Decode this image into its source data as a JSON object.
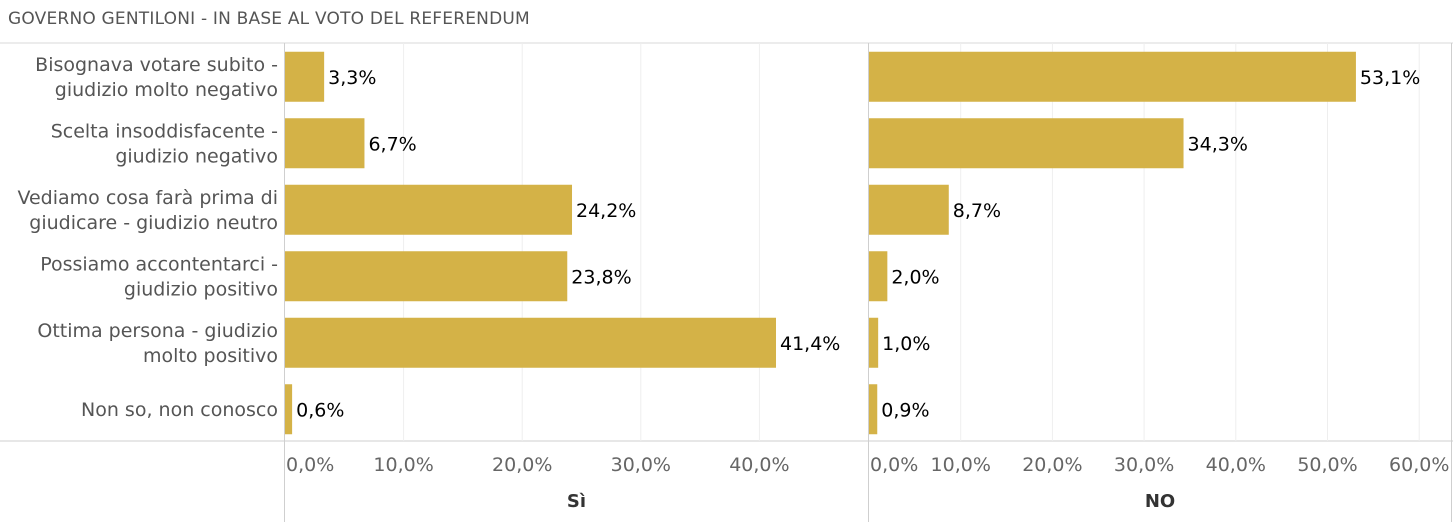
{
  "title": "GOVERNO GENTILONI - IN BASE AL VOTO DEL REFERENDUM",
  "chart_data": {
    "type": "bar",
    "orientation": "horizontal",
    "title": "GOVERNO GENTILONI - IN BASE AL VOTO DEL REFERENDUM",
    "bar_color": "#D4B247",
    "categories": [
      [
        "Bisognava votare subito -",
        "giudizio molto negativo"
      ],
      [
        "Scelta insoddisfacente -",
        "giudizio negativo"
      ],
      [
        "Vediamo cosa farà prima di",
        "giudicare - giudizio neutro"
      ],
      [
        "Possiamo accontentarci -",
        "giudizio positivo"
      ],
      [
        "Ottima persona - giudizio",
        "molto positivo"
      ],
      [
        "Non so, non conosco"
      ]
    ],
    "series": [
      {
        "name": "Sì",
        "values": [
          3.3,
          6.7,
          24.2,
          23.8,
          41.4,
          0.6
        ],
        "labels": [
          "3,3%",
          "6,7%",
          "24,2%",
          "23,8%",
          "41,4%",
          "0,6%"
        ],
        "xlim": [
          0,
          49
        ],
        "ticks": [
          0,
          10,
          20,
          30,
          40
        ],
        "tick_labels": [
          "0,0%",
          "10,0%",
          "20,0%",
          "30,0%",
          "40,0%"
        ]
      },
      {
        "name": "NO",
        "values": [
          53.1,
          34.3,
          8.7,
          2.0,
          1.0,
          0.9
        ],
        "labels": [
          "53,1%",
          "34,3%",
          "8,7%",
          "2,0%",
          "1,0%",
          "0,9%"
        ],
        "xlim": [
          0,
          63
        ],
        "ticks": [
          0,
          10,
          20,
          30,
          40,
          50,
          60
        ],
        "tick_labels": [
          "0,0%",
          "10,0%",
          "20,0%",
          "30,0%",
          "40,0%",
          "50,0%",
          "60,0%"
        ]
      }
    ],
    "grid": true
  }
}
